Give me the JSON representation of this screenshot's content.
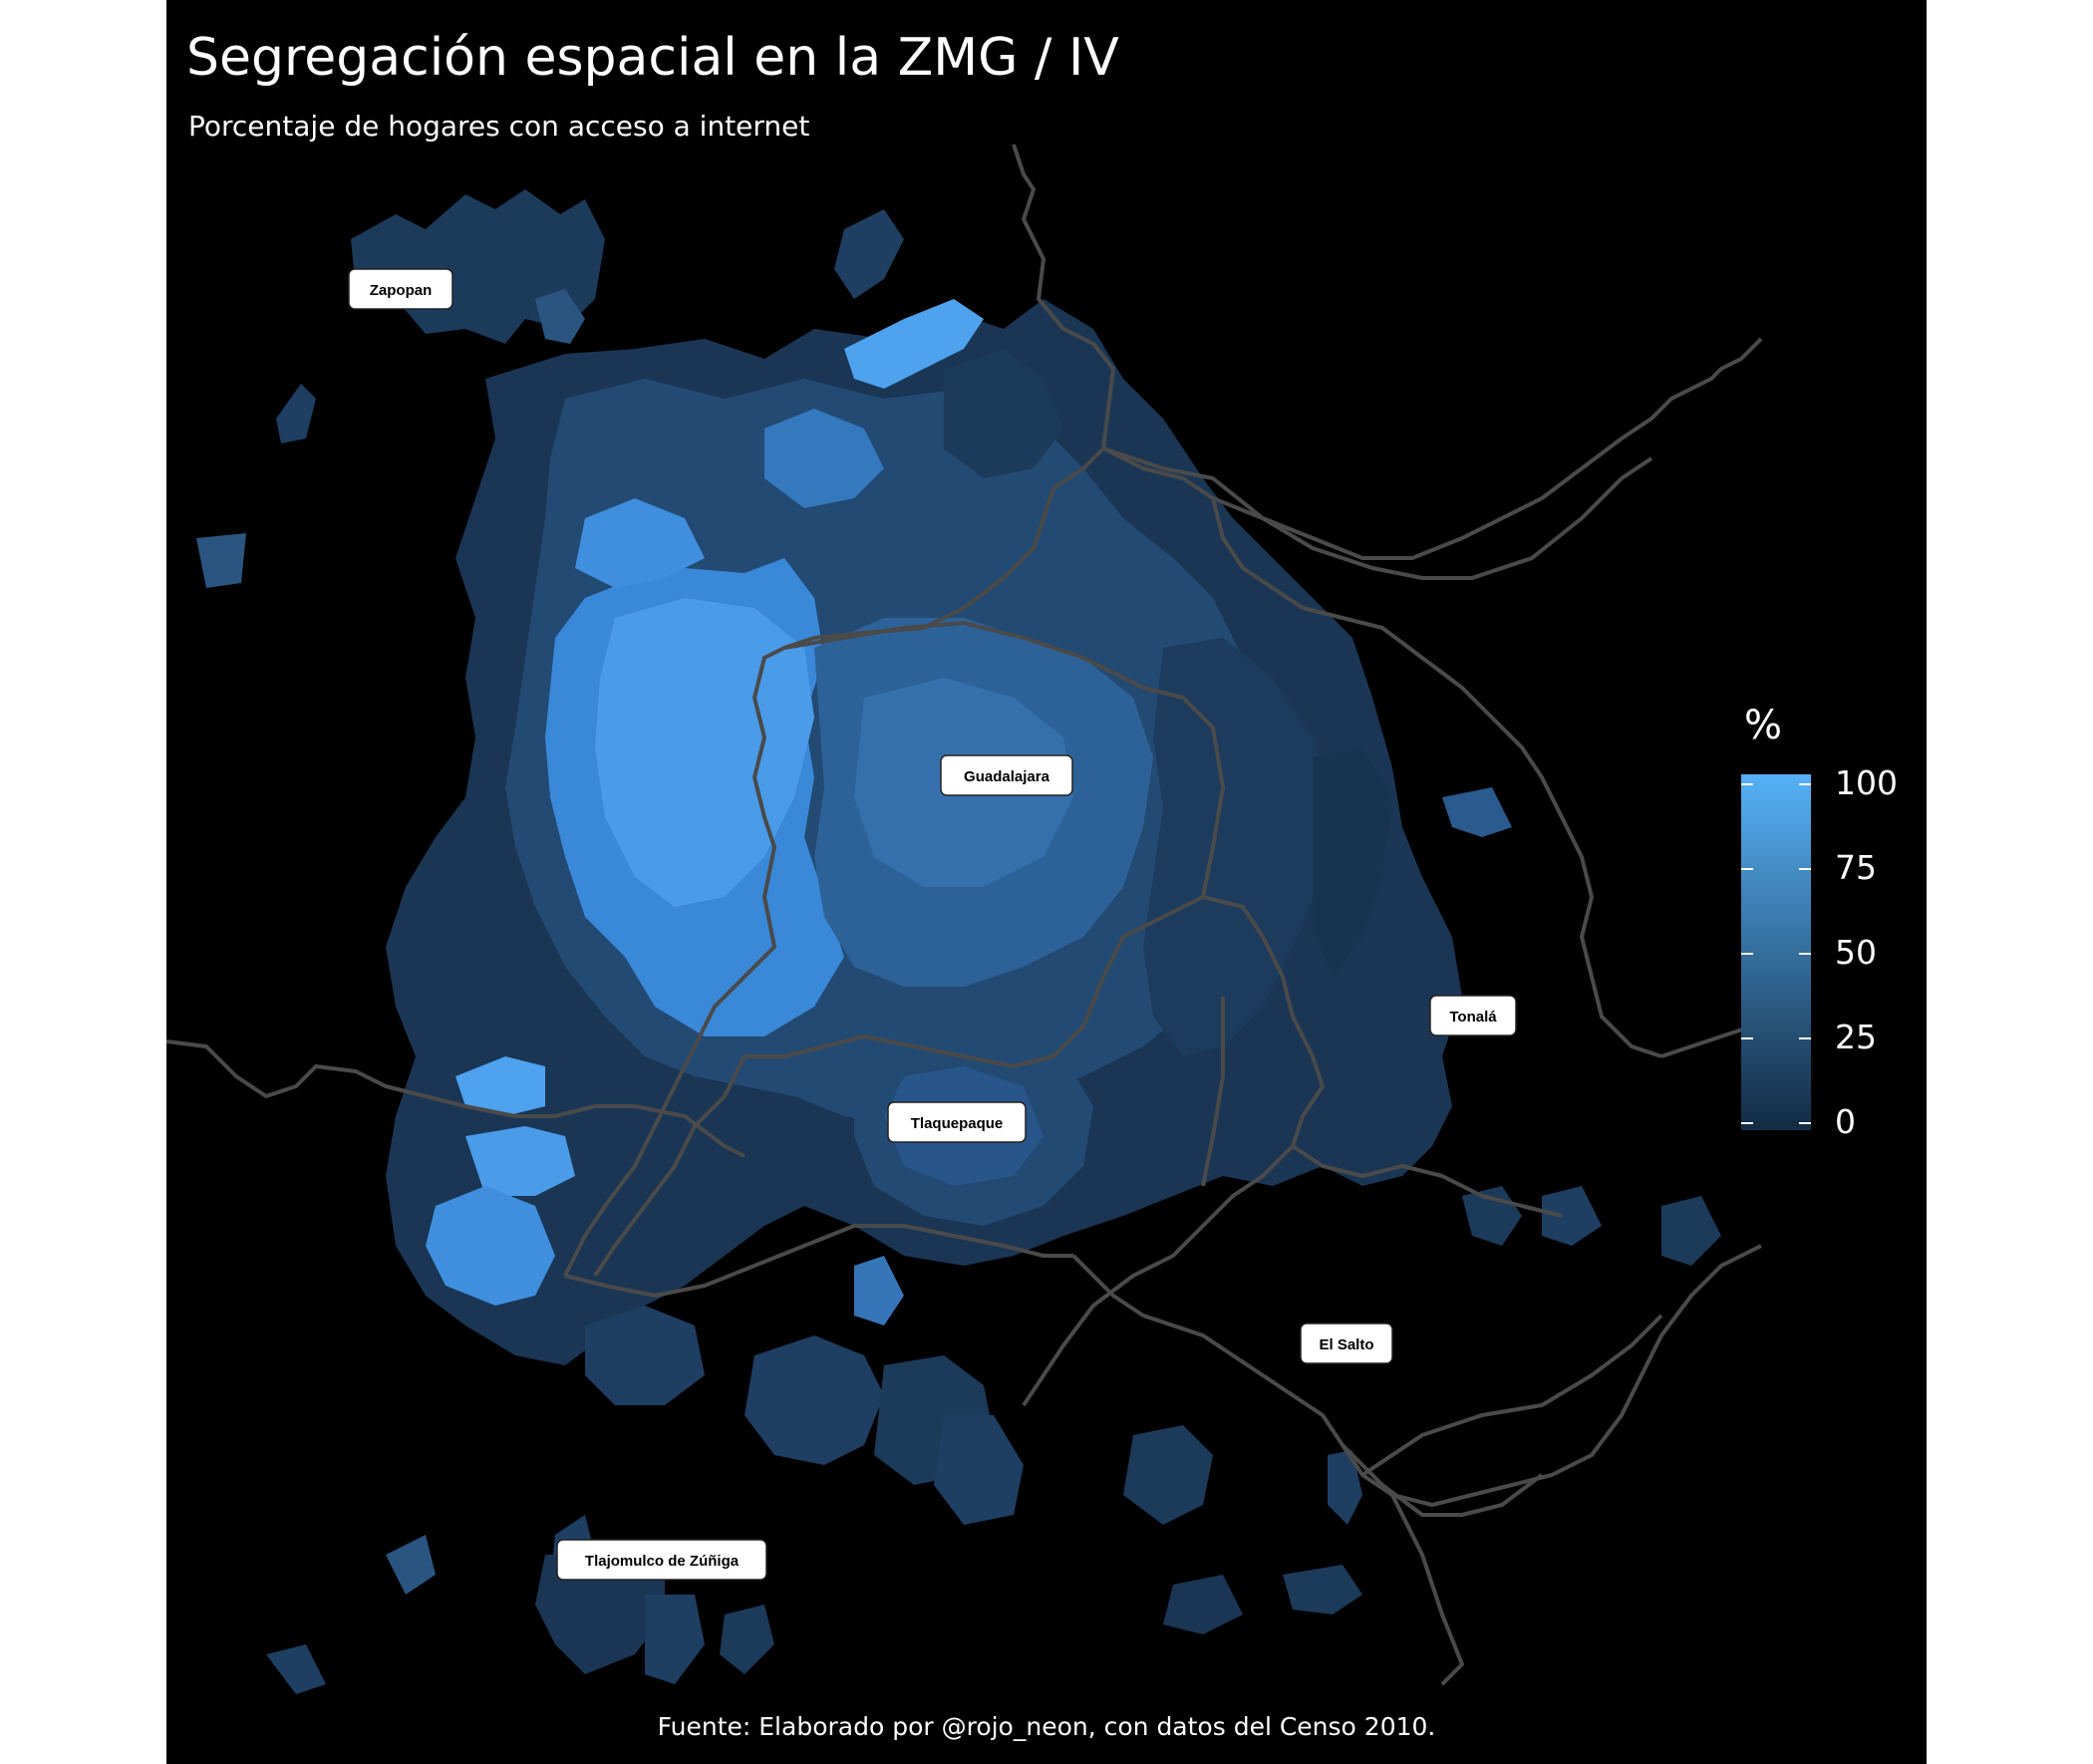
{
  "title": "Segregación espacial en la ZMG / IV",
  "subtitle": "Porcentaje de hogares con acceso a internet",
  "caption": "Fuente: Elaborado por @rojo_neon, con datos del Censo 2010.",
  "legend": {
    "title": "%",
    "ticks": [
      "100",
      "75",
      "50",
      "25",
      "0"
    ],
    "color_low": "#132b43",
    "color_high": "#56b1f7"
  },
  "municipalities": [
    {
      "name": "Zapopan"
    },
    {
      "name": "Guadalajara"
    },
    {
      "name": "Tonalá"
    },
    {
      "name": "Tlaquepaque"
    },
    {
      "name": "El Salto"
    },
    {
      "name": "Tlajomulco de Zúñiga"
    }
  ],
  "colors": {
    "background": "#000000",
    "boundary": "#4a4a4a"
  }
}
